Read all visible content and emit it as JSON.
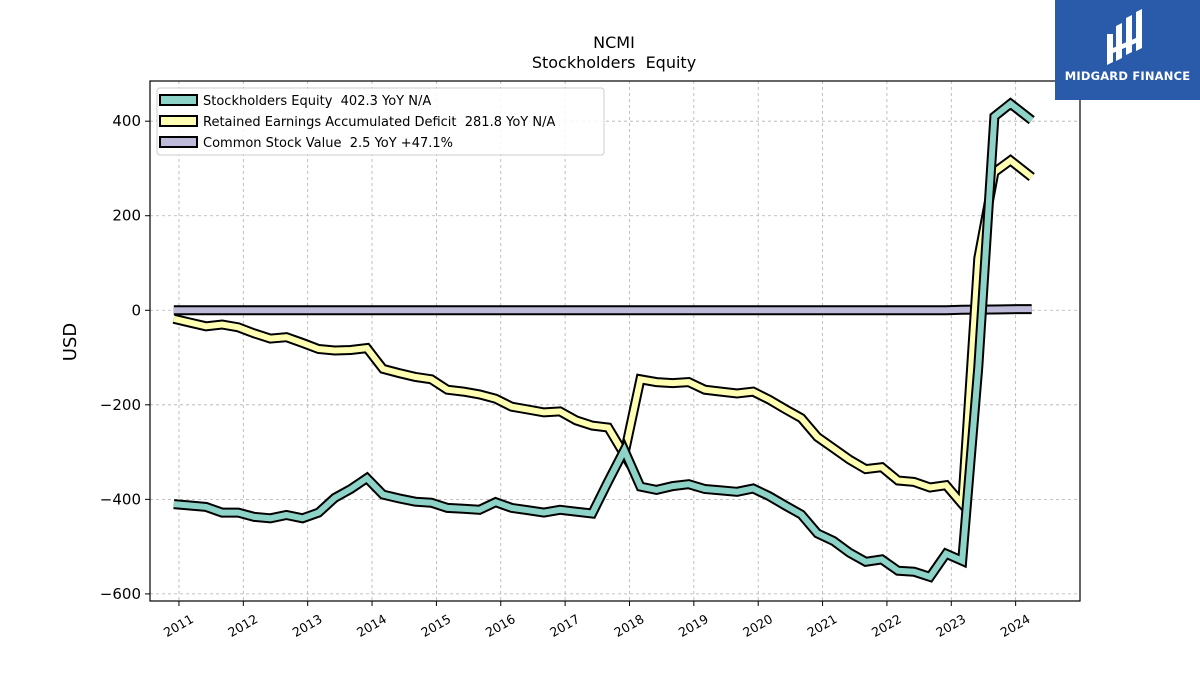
{
  "chart_data": {
    "type": "line",
    "title": "NCMI",
    "subtitle": "Stockholders  Equity",
    "xlabel": "",
    "ylabel": "USD",
    "xlim": [
      2010.55,
      2025.0
    ],
    "ylim": [
      -615,
      485
    ],
    "yticks": [
      -600,
      -400,
      -200,
      0,
      200,
      400
    ],
    "ytick_labels": [
      "−600",
      "−400",
      "−200",
      "0",
      "200",
      "400"
    ],
    "xticks": [
      2011,
      2012,
      2013,
      2014,
      2015,
      2016,
      2017,
      2018,
      2019,
      2020,
      2021,
      2022,
      2023,
      2024
    ],
    "xtick_labels": [
      "2011",
      "2012",
      "2013",
      "2014",
      "2015",
      "2016",
      "2017",
      "2018",
      "2019",
      "2020",
      "2021",
      "2022",
      "2023",
      "2024"
    ],
    "grid": true,
    "legend_position": "top-left",
    "series": [
      {
        "name": "Stockholders Equity  402.3 YoY N/A",
        "color": "#8dd3c7",
        "x": [
          2010.92,
          2011.17,
          2011.42,
          2011.67,
          2011.92,
          2012.17,
          2012.42,
          2012.67,
          2012.92,
          2013.17,
          2013.42,
          2013.67,
          2013.92,
          2014.17,
          2014.42,
          2014.67,
          2014.92,
          2015.17,
          2015.42,
          2015.67,
          2015.92,
          2016.17,
          2016.42,
          2016.67,
          2016.92,
          2017.17,
          2017.42,
          2017.67,
          2017.92,
          2018.17,
          2018.42,
          2018.67,
          2018.92,
          2019.17,
          2019.42,
          2019.67,
          2019.92,
          2020.17,
          2020.42,
          2020.67,
          2020.92,
          2021.17,
          2021.42,
          2021.67,
          2021.92,
          2022.17,
          2022.42,
          2022.67,
          2022.92,
          2023.17,
          2023.42,
          2023.67,
          2023.92,
          2024.25
        ],
        "values": [
          -410,
          -413,
          -416,
          -428,
          -428,
          -437,
          -440,
          -433,
          -440,
          -428,
          -397,
          -378,
          -355,
          -390,
          -398,
          -405,
          -407,
          -418,
          -420,
          -422,
          -406,
          -418,
          -423,
          -428,
          -422,
          -426,
          -430,
          -362,
          -296,
          -373,
          -380,
          -372,
          -368,
          -378,
          -381,
          -384,
          -377,
          -393,
          -413,
          -432,
          -472,
          -488,
          -513,
          -532,
          -527,
          -551,
          -553,
          -564,
          -515,
          -530,
          -120,
          410,
          437,
          402
        ]
      },
      {
        "name": "Retained Earnings Accumulated Deficit  281.8 YoY N/A",
        "color": "#ffffb3",
        "x": [
          2010.92,
          2011.17,
          2011.42,
          2011.67,
          2011.92,
          2012.17,
          2012.42,
          2012.67,
          2012.92,
          2013.17,
          2013.42,
          2013.67,
          2013.92,
          2014.17,
          2014.42,
          2014.67,
          2014.92,
          2015.17,
          2015.42,
          2015.67,
          2015.92,
          2016.17,
          2016.42,
          2016.67,
          2016.92,
          2017.17,
          2017.42,
          2017.67,
          2017.92,
          2018.17,
          2018.42,
          2018.67,
          2018.92,
          2019.17,
          2019.42,
          2019.67,
          2019.92,
          2020.17,
          2020.42,
          2020.67,
          2020.92,
          2021.17,
          2021.42,
          2021.67,
          2021.92,
          2022.17,
          2022.42,
          2022.67,
          2022.92,
          2023.17,
          2023.42,
          2023.67,
          2023.92,
          2024.25
        ],
        "values": [
          -18,
          -26,
          -34,
          -30,
          -36,
          -49,
          -60,
          -57,
          -69,
          -82,
          -85,
          -84,
          -80,
          -124,
          -133,
          -141,
          -146,
          -168,
          -172,
          -178,
          -187,
          -204,
          -210,
          -216,
          -214,
          -233,
          -244,
          -248,
          -305,
          -146,
          -152,
          -154,
          -152,
          -168,
          -172,
          -176,
          -172,
          -189,
          -209,
          -228,
          -268,
          -292,
          -316,
          -336,
          -332,
          -360,
          -363,
          -375,
          -370,
          -410,
          110,
          292,
          317,
          281.8
        ]
      },
      {
        "name": "Common Stock Value  2.5 YoY +47.1%",
        "color": "#bebada",
        "x": [
          2010.92,
          2022.92,
          2023.17,
          2023.42,
          2023.67,
          2023.92,
          2024.25
        ],
        "values": [
          0,
          0,
          0.9,
          1.4,
          1.7,
          2.3,
          2.5
        ]
      }
    ]
  },
  "logo": {
    "text": "MIDGARD FINANCE",
    "background": "#2a5bab"
  }
}
